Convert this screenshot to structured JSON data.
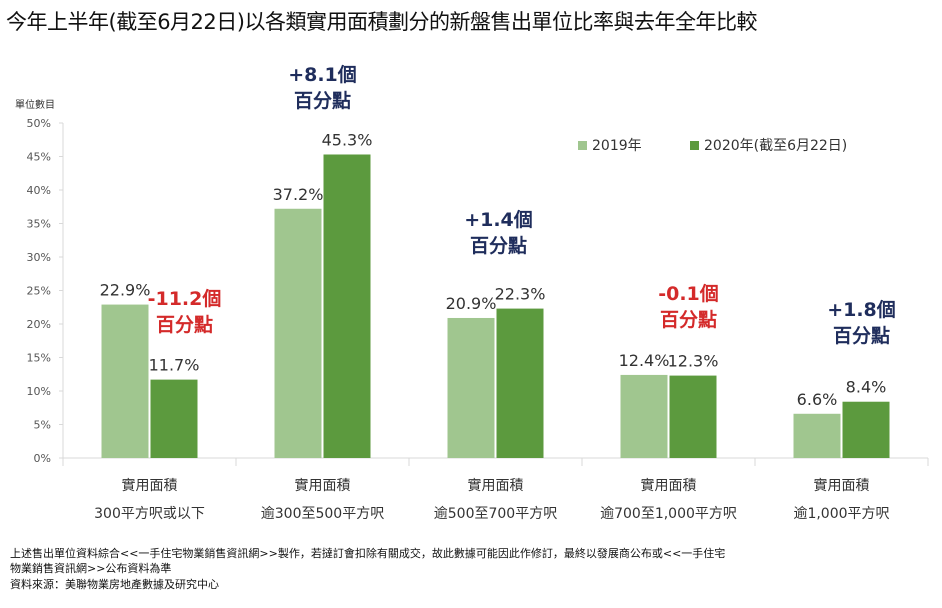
{
  "title": "今年上半年(截至6月22日)以各類實用面積劃分的新盤售出單位比率與去年全年比較",
  "colors": {
    "series_2019": "#a0c68f",
    "series_2020": "#5c9a3e",
    "positive_annotation": "#1f2d5c",
    "negative_annotation": "#d42a2a",
    "axis": "#d9d9d9",
    "label_text": "#333333"
  },
  "chart_data": {
    "type": "bar",
    "title": "今年上半年(截至6月22日)以各類實用面積劃分的新盤售出單位比率與去年全年比較",
    "ylabel": "單位數目",
    "xlabel": "",
    "ylim": [
      0,
      50
    ],
    "yticks": [
      0,
      5,
      10,
      15,
      20,
      25,
      30,
      35,
      40,
      45,
      50
    ],
    "ytick_labels": [
      "0%",
      "5%",
      "10%",
      "15%",
      "20%",
      "25%",
      "30%",
      "35%",
      "40%",
      "45%",
      "50%"
    ],
    "grid": false,
    "legend_position": "top-right",
    "categories": [
      {
        "line1": "實用面積",
        "line2": "300平方呎或以下"
      },
      {
        "line1": "實用面積",
        "line2": "逾300至500平方呎"
      },
      {
        "line1": "實用面積",
        "line2": "逾500至700平方呎"
      },
      {
        "line1": "實用面積",
        "line2": "逾700至1,000平方呎"
      },
      {
        "line1": "實用面積",
        "line2": "逾1,000平方呎"
      }
    ],
    "series": [
      {
        "name": "2019年",
        "values": [
          22.9,
          37.2,
          20.9,
          12.4,
          6.6
        ],
        "labels": [
          "22.9%",
          "37.2%",
          "20.9%",
          "12.4%",
          "6.6%"
        ]
      },
      {
        "name": "2020年(截至6月22日)",
        "values": [
          11.7,
          45.3,
          22.3,
          12.3,
          8.4
        ],
        "labels": [
          "11.7%",
          "45.3%",
          "22.3%",
          "12.3%",
          "8.4%"
        ]
      }
    ],
    "annotations": [
      {
        "line1": "-11.2個",
        "line2": "百分點",
        "sign": "negative"
      },
      {
        "line1": "+8.1個",
        "line2": "百分點",
        "sign": "positive"
      },
      {
        "line1": "+1.4個",
        "line2": "百分點",
        "sign": "positive"
      },
      {
        "line1": "-0.1個",
        "line2": "百分點",
        "sign": "negative"
      },
      {
        "line1": "+1.8個",
        "line2": "百分點",
        "sign": "positive"
      }
    ]
  },
  "footnotes": [
    "上述售出單位資料綜合<<一手住宅物業銷售資訊網>>製作，若撻訂會扣除有關成交，故此數據可能因此作修訂，最終以發展商公布或<<一手住宅",
    "物業銷售資訊網>>公布資料為準",
    "資料來源：美聯物業房地產數據及研究中心"
  ]
}
